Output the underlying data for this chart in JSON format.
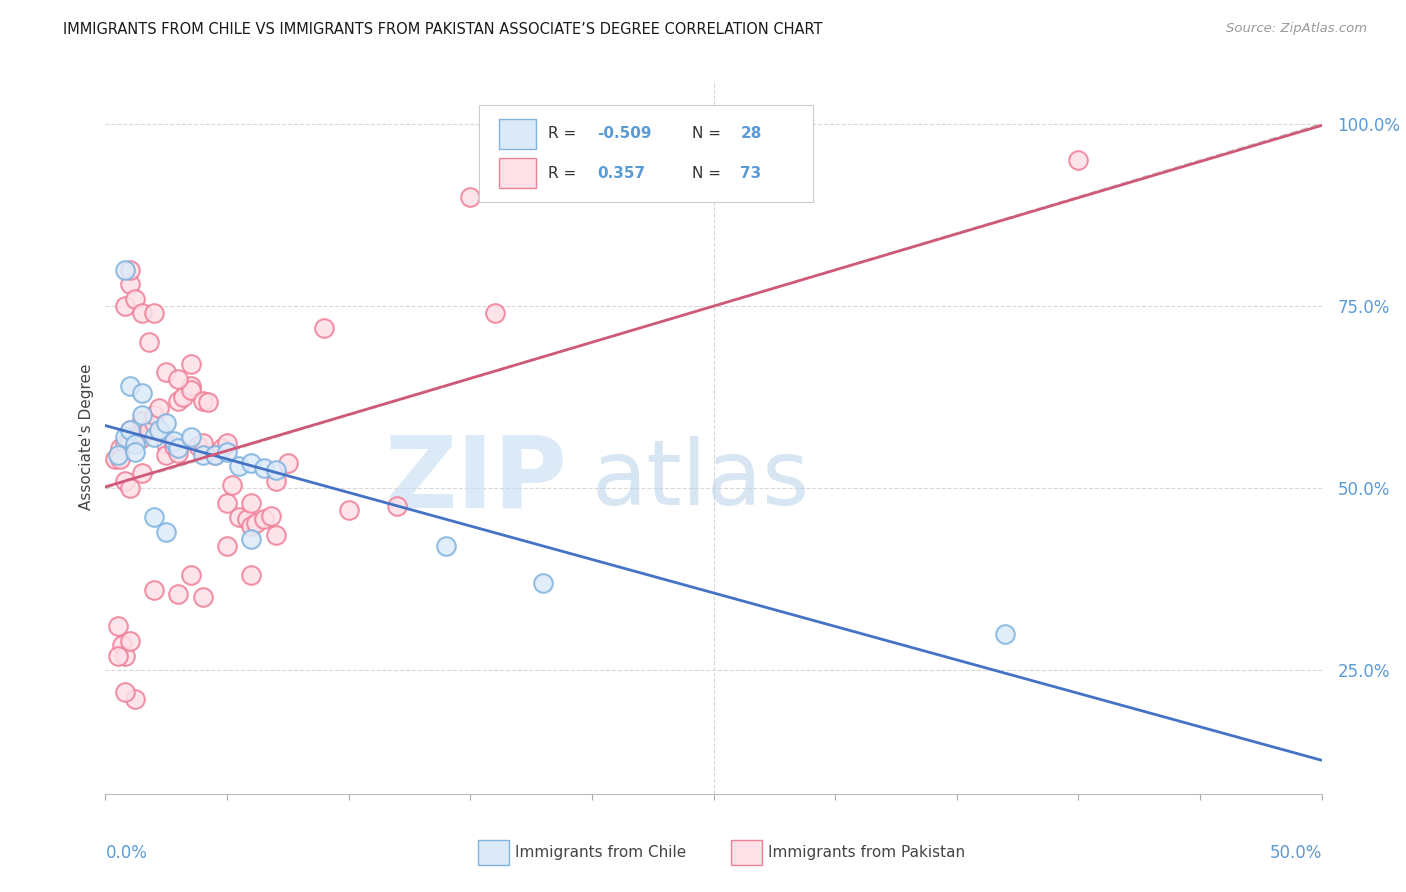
{
  "title": "IMMIGRANTS FROM CHILE VS IMMIGRANTS FROM PAKISTAN ASSOCIATE’S DEGREE CORRELATION CHART",
  "source": "Source: ZipAtlas.com",
  "ylabel": "Associate's Degree",
  "xlim": [
    0.0,
    0.5
  ],
  "ylim": [
    0.08,
    1.06
  ],
  "chile_color": "#7fb3e0",
  "pakistan_color": "#f08098",
  "chile_line_color": "#4472c4",
  "pakistan_line_color": "#d05878",
  "ref_line_color": "#c8c8c8",
  "axis_label_color": "#5b9bd5",
  "background_color": "#ffffff",
  "grid_color": "#d8d8d8",
  "watermark_zip": "ZIP",
  "watermark_atlas": "atlas",
  "ytick_positions": [
    0.25,
    0.5,
    0.75,
    1.0
  ],
  "ytick_labels": [
    "25.0%",
    "50.0%",
    "75.0%",
    "100.0%"
  ],
  "chile_x": [
    0.005,
    0.008,
    0.01,
    0.012,
    0.015,
    0.01,
    0.015,
    0.02,
    0.022,
    0.025,
    0.028,
    0.03,
    0.035,
    0.04,
    0.045,
    0.05,
    0.055,
    0.06,
    0.065,
    0.07,
    0.02,
    0.025,
    0.008,
    0.012,
    0.14,
    0.18,
    0.37,
    0.06
  ],
  "chile_y": [
    0.545,
    0.57,
    0.58,
    0.56,
    0.6,
    0.64,
    0.63,
    0.57,
    0.58,
    0.59,
    0.565,
    0.555,
    0.57,
    0.545,
    0.545,
    0.55,
    0.53,
    0.535,
    0.528,
    0.525,
    0.46,
    0.44,
    0.8,
    0.55,
    0.42,
    0.37,
    0.3,
    0.43
  ],
  "pakistan_x": [
    0.004,
    0.006,
    0.008,
    0.01,
    0.01,
    0.012,
    0.014,
    0.015,
    0.015,
    0.018,
    0.02,
    0.02,
    0.022,
    0.025,
    0.025,
    0.028,
    0.03,
    0.03,
    0.032,
    0.035,
    0.035,
    0.038,
    0.04,
    0.04,
    0.042,
    0.045,
    0.048,
    0.05,
    0.05,
    0.052,
    0.055,
    0.058,
    0.06,
    0.06,
    0.062,
    0.065,
    0.068,
    0.07,
    0.07,
    0.075,
    0.008,
    0.01,
    0.01,
    0.012,
    0.015,
    0.018,
    0.02,
    0.025,
    0.03,
    0.035,
    0.005,
    0.007,
    0.008,
    0.01,
    0.012,
    0.006,
    0.008,
    0.01,
    0.005,
    0.008,
    0.4,
    0.16,
    0.09,
    0.15,
    0.1,
    0.12,
    0.03,
    0.05,
    0.035,
    0.04,
    0.06,
    0.02,
    0.015
  ],
  "pakistan_y": [
    0.54,
    0.555,
    0.56,
    0.565,
    0.58,
    0.572,
    0.568,
    0.575,
    0.592,
    0.58,
    0.59,
    0.6,
    0.61,
    0.56,
    0.545,
    0.558,
    0.548,
    0.62,
    0.625,
    0.64,
    0.635,
    0.558,
    0.562,
    0.62,
    0.618,
    0.545,
    0.555,
    0.562,
    0.48,
    0.504,
    0.46,
    0.458,
    0.448,
    0.48,
    0.452,
    0.458,
    0.462,
    0.435,
    0.51,
    0.535,
    0.75,
    0.78,
    0.8,
    0.76,
    0.74,
    0.7,
    0.74,
    0.66,
    0.65,
    0.67,
    0.31,
    0.285,
    0.27,
    0.29,
    0.21,
    0.54,
    0.51,
    0.5,
    0.27,
    0.22,
    0.95,
    0.74,
    0.72,
    0.9,
    0.47,
    0.475,
    0.355,
    0.42,
    0.38,
    0.35,
    0.38,
    0.36,
    0.52
  ],
  "chile_R": "-0.509",
  "chile_N": "28",
  "pak_R": "0.357",
  "pak_N": "73",
  "legend_label_chile": "Immigrants from Chile",
  "legend_label_pak": "Immigrants from Pakistan"
}
